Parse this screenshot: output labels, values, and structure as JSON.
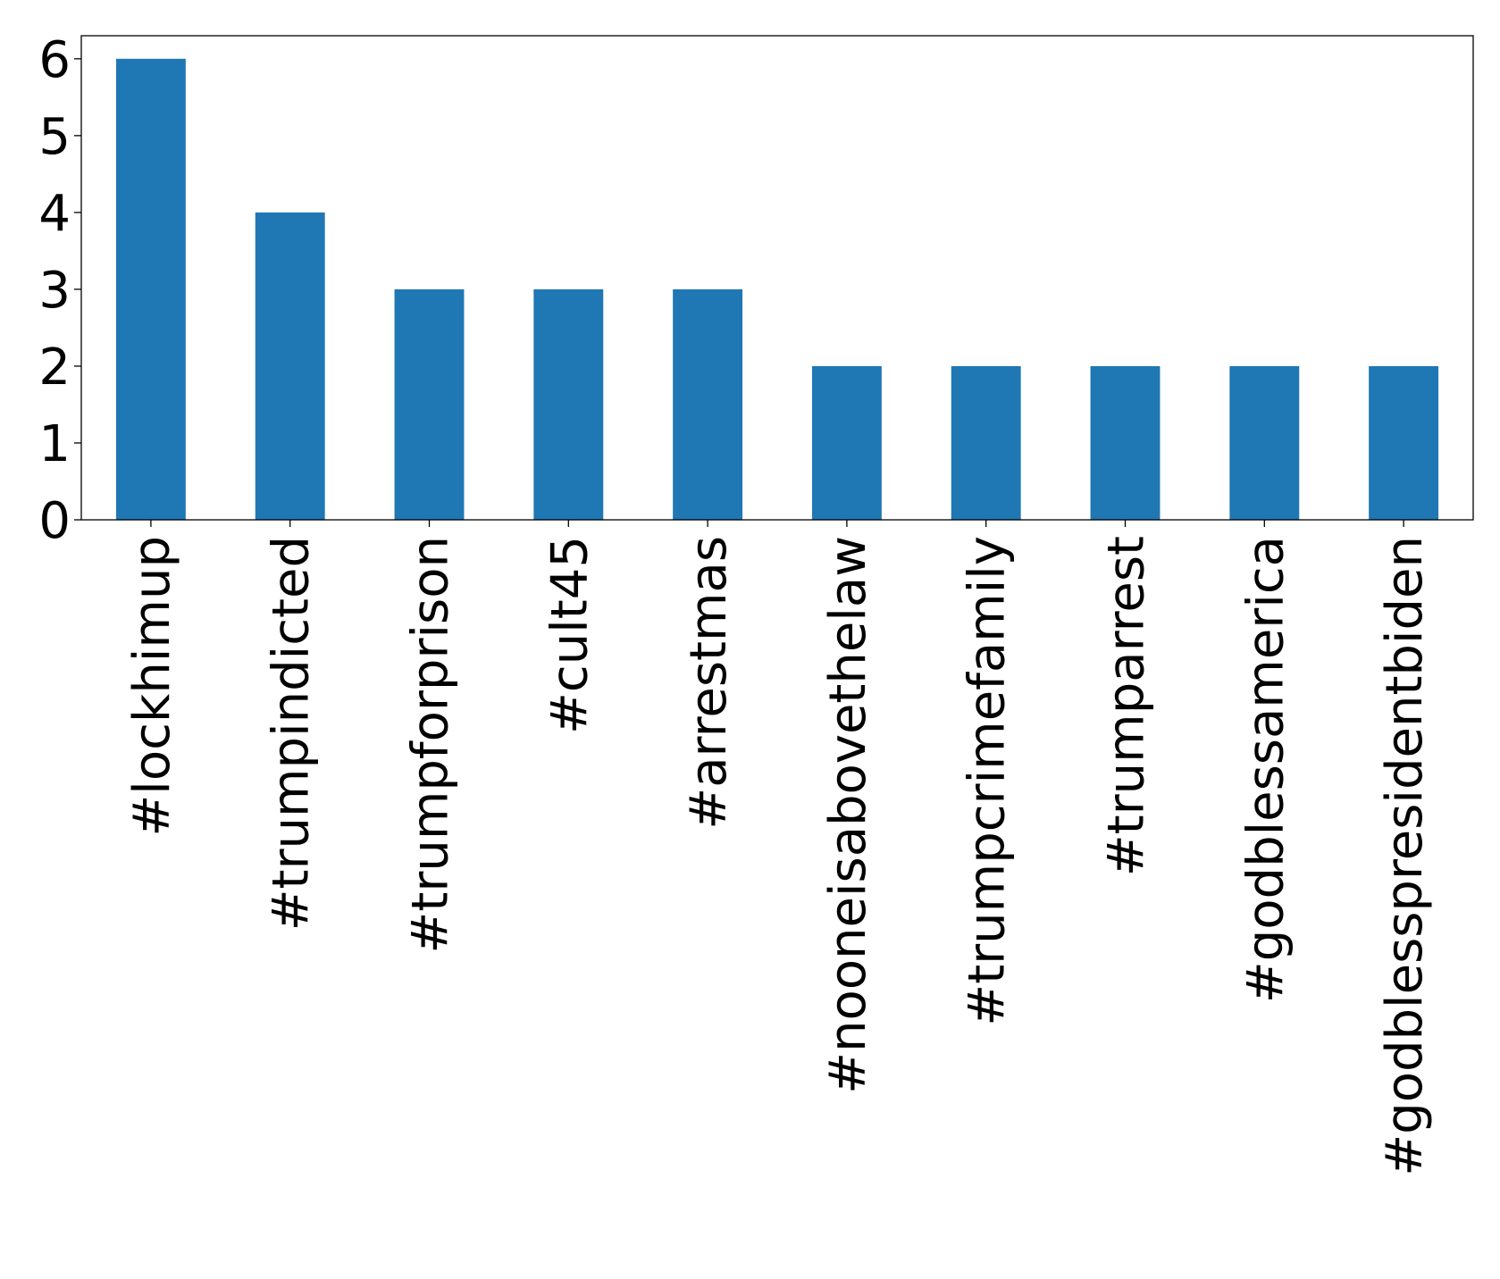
{
  "chart_data": {
    "type": "bar",
    "title": "",
    "xlabel": "",
    "ylabel": "",
    "categories": [
      "#lockhimup",
      "#trumpindicted",
      "#trumpforprison",
      "#cult45",
      "#arrestmas",
      "#nooneisabovethelaw",
      "#trumpcrimefamily",
      "#trumparrest",
      "#godblessamerica",
      "#godblesspresidentbiden"
    ],
    "values": [
      6,
      4,
      3,
      3,
      3,
      2,
      2,
      2,
      2,
      2
    ],
    "ylim": [
      0,
      6.3
    ],
    "yticks": [
      0,
      1,
      2,
      3,
      4,
      5,
      6
    ],
    "bar_color": "#1f77b4",
    "grid": false,
    "legend": "none"
  }
}
